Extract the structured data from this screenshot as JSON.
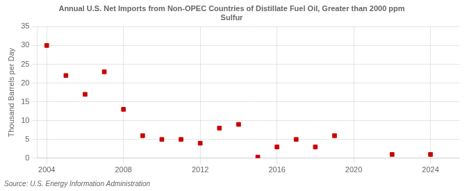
{
  "chart_data": {
    "type": "scatter",
    "title": "Annual U.S. Net Imports from Non-OPEC Countries of Distillate Fuel Oil, Greater than 2000 ppm\nSulfur",
    "ylabel": "Thousand Barrels per Day",
    "source": "Source: U.S. Energy Information Administration",
    "x": [
      2004,
      2005,
      2006,
      2007,
      2008,
      2009,
      2010,
      2011,
      2012,
      2013,
      2014,
      2015,
      2016,
      2017,
      2018,
      2019,
      2022,
      2024
    ],
    "values": [
      30,
      22,
      17,
      23,
      13,
      6,
      5,
      5,
      4,
      8,
      9,
      0.3,
      3,
      5,
      3,
      6,
      1,
      1
    ],
    "color": "#cc0000",
    "marker": "square",
    "xlim": [
      2003.5,
      2025.5
    ],
    "xticks": [
      2004,
      2008,
      2012,
      2016,
      2020,
      2024
    ],
    "ylim": [
      0,
      35
    ],
    "yticks": [
      0,
      5,
      10,
      15,
      20,
      25,
      30,
      35
    ],
    "grid": true
  }
}
